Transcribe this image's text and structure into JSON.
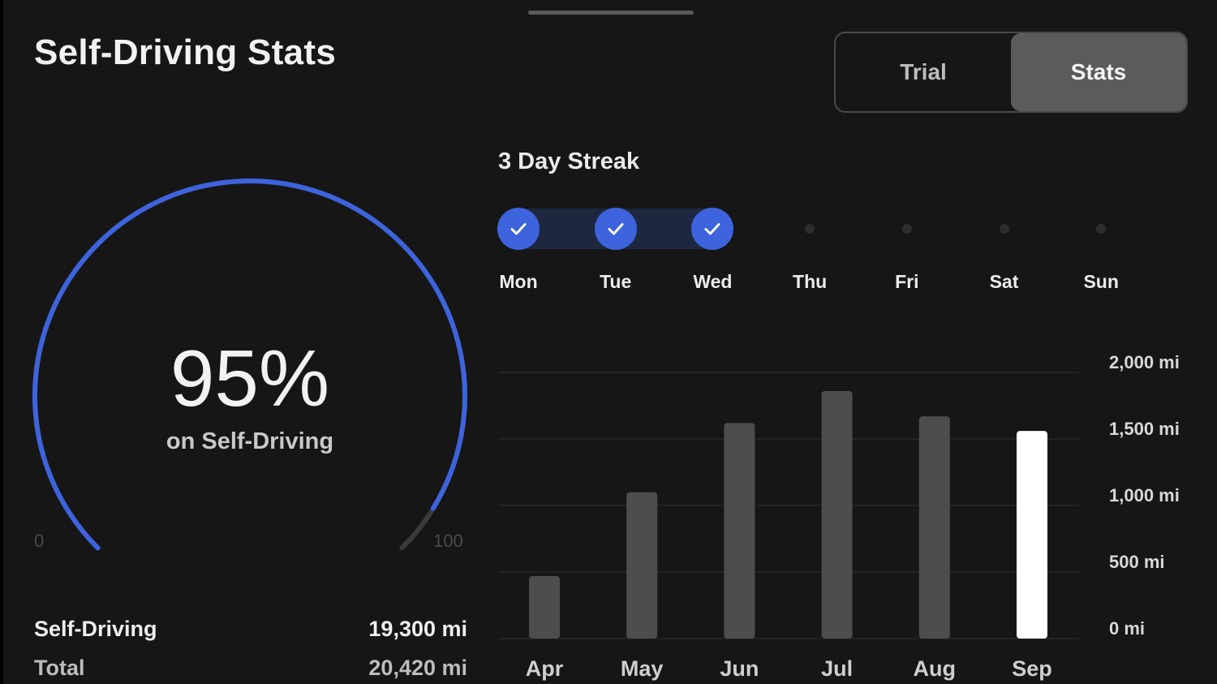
{
  "header": {
    "title": "Self-Driving Stats",
    "tabs": [
      {
        "label": "Trial",
        "active": false
      },
      {
        "label": "Stats",
        "active": true
      }
    ]
  },
  "gauge": {
    "percent": 95,
    "value_label": "95%",
    "subtitle": "on Self-Driving",
    "min_label": "0",
    "max_label": "100",
    "accent_color": "#3d63dd"
  },
  "stats": [
    {
      "label": "Self-Driving",
      "value": "19,300 mi"
    },
    {
      "label": "Total",
      "value": "20,420 mi"
    }
  ],
  "streak": {
    "title": "3 Day Streak",
    "days": [
      {
        "label": "Mon",
        "done": true
      },
      {
        "label": "Tue",
        "done": true
      },
      {
        "label": "Wed",
        "done": true
      },
      {
        "label": "Thu",
        "done": false
      },
      {
        "label": "Fri",
        "done": false
      },
      {
        "label": "Sat",
        "done": false
      },
      {
        "label": "Sun",
        "done": false
      }
    ]
  },
  "chart_data": {
    "type": "bar",
    "title": "",
    "categories": [
      "Apr",
      "May",
      "Jun",
      "Jul",
      "Aug",
      "Sep"
    ],
    "values": [
      470,
      1100,
      1620,
      1860,
      1670,
      1560
    ],
    "highlight_index": 5,
    "ylim": [
      0,
      2000
    ],
    "yticks": [
      0,
      500,
      1000,
      1500,
      2000
    ],
    "ytick_labels": [
      "0 mi",
      "500 mi",
      "1,000 mi",
      "1,500 mi",
      "2,000 mi"
    ],
    "xlabel": "",
    "ylabel": "",
    "grid": true,
    "bar_color": "#4d4d4d",
    "highlight_color": "#ffffff"
  }
}
